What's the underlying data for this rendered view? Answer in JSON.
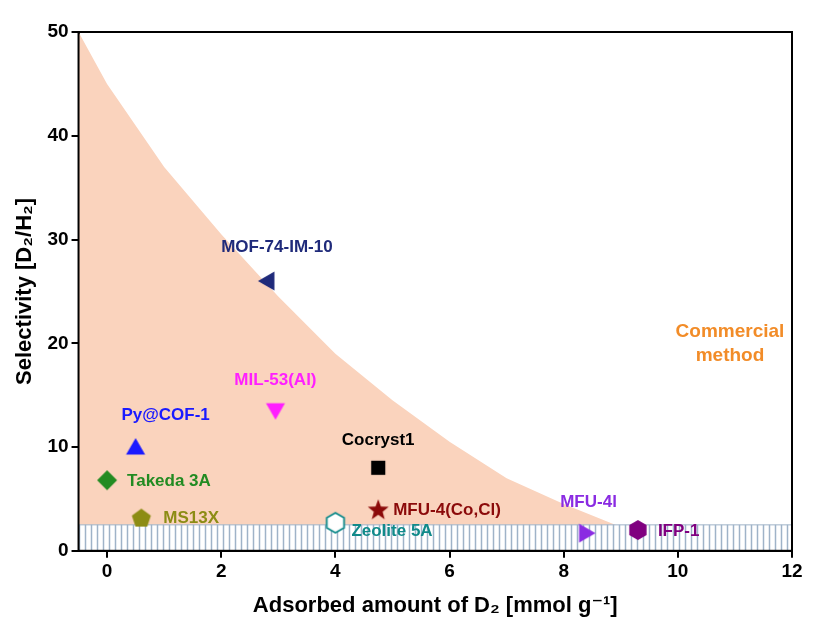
{
  "chart_data": {
    "type": "scatter",
    "x_label": "Adsorbed amount of D₂ [mmol g⁻¹]",
    "y_label": "Selectivity [D₂/H₂]",
    "xlim": [
      -0.5,
      12
    ],
    "xticks": [
      0,
      2,
      4,
      6,
      8,
      10,
      12
    ],
    "ylim": [
      0,
      50
    ],
    "yticks": [
      0,
      10,
      20,
      30,
      40,
      50
    ],
    "grid": false,
    "legend": false,
    "data_labels": true,
    "region": {
      "color": "#fad3bd",
      "x": [
        -0.5,
        0,
        1,
        2,
        3,
        4,
        5,
        6,
        7,
        8,
        9,
        10,
        10.5
      ],
      "values": [
        50,
        45,
        37,
        30.5,
        24.5,
        19,
        14.5,
        10.5,
        7,
        4.5,
        2.3,
        0.8,
        0
      ]
    },
    "band": {
      "color": "#9fb3c8",
      "values": [
        0,
        2.5
      ]
    },
    "annotations": [
      {
        "text": "Commercial method",
        "color": "#f28c28"
      }
    ],
    "series": [
      {
        "name": "MOF-74-IM-10",
        "color": "#1f2a7a",
        "marker": "triangle-left",
        "x": [
          2.8
        ],
        "values": [
          26
        ]
      },
      {
        "name": "MIL-53(Al)",
        "color": "#ff1fff",
        "marker": "triangle-down",
        "x": [
          2.95
        ],
        "values": [
          13.5
        ]
      },
      {
        "name": "Py@COF-1",
        "color": "#1a1aff",
        "marker": "triangle-up",
        "x": [
          0.5
        ],
        "values": [
          10
        ]
      },
      {
        "name": "Takeda 3A",
        "color": "#228b22",
        "marker": "diamond",
        "x": [
          0
        ],
        "values": [
          6.8
        ]
      },
      {
        "name": "MS13X",
        "color": "#8c8c14",
        "marker": "pentagon",
        "x": [
          0.6
        ],
        "values": [
          3.2
        ]
      },
      {
        "name": "Cocryst1",
        "color": "#000000",
        "marker": "square",
        "x": [
          4.75
        ],
        "values": [
          8
        ]
      },
      {
        "name": "MFU-4(Co,Cl)",
        "color": "#8b0a0a",
        "marker": "star",
        "x": [
          4.75
        ],
        "values": [
          4
        ]
      },
      {
        "name": "Zeolite 5A",
        "color": "#108a8a",
        "marker": "hexagon-open",
        "x": [
          4.0
        ],
        "values": [
          2.7
        ]
      },
      {
        "name": "MFU-4l",
        "color": "#8a2be2",
        "marker": "triangle-right",
        "x": [
          8.4
        ],
        "values": [
          1.7
        ]
      },
      {
        "name": "IFP-1",
        "color": "#800080",
        "marker": "hexagon",
        "x": [
          9.3
        ],
        "values": [
          2
        ]
      }
    ]
  }
}
